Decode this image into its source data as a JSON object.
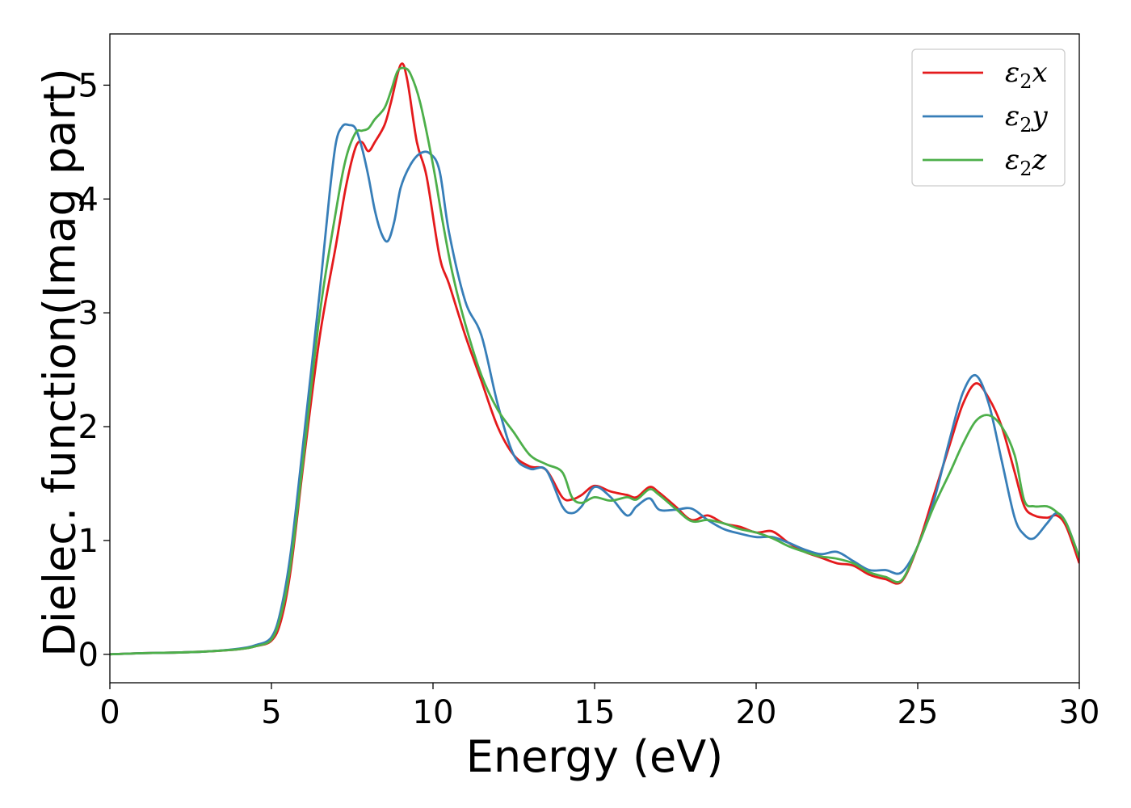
{
  "chart_data": {
    "type": "line",
    "title": "",
    "xlabel": "Energy (eV)",
    "ylabel": "Dielec. function(Imag part)",
    "xlim": [
      0,
      30
    ],
    "ylim": [
      -0.25,
      5.45
    ],
    "xticks": [
      0,
      5,
      10,
      15,
      20,
      25,
      30
    ],
    "yticks": [
      0,
      1,
      2,
      3,
      4,
      5
    ],
    "grid": false,
    "legend": "top-right",
    "series": [
      {
        "name": "ε2x",
        "label_main": "ε",
        "label_sub": "2",
        "label_tail": "x",
        "color": "#e41a1c",
        "x": [
          0,
          1,
          2,
          3,
          4,
          4.5,
          5,
          5.3,
          5.6,
          6,
          6.5,
          7,
          7.3,
          7.6,
          7.8,
          8.0,
          8.2,
          8.5,
          8.7,
          9.0,
          9.2,
          9.5,
          9.8,
          10.2,
          10.5,
          11,
          11.5,
          12,
          12.5,
          13,
          13.5,
          14,
          14.3,
          14.6,
          15,
          15.5,
          16,
          16.3,
          16.7,
          17,
          17.5,
          18,
          18.5,
          19,
          19.5,
          20,
          20.5,
          21,
          21.5,
          22,
          22.5,
          23,
          23.5,
          24,
          24.5,
          25,
          25.5,
          26,
          26.4,
          26.8,
          27.2,
          27.6,
          28,
          28.3,
          28.6,
          29,
          29.3,
          29.6,
          30
        ],
        "y": [
          0.0,
          0.01,
          0.015,
          0.025,
          0.045,
          0.07,
          0.12,
          0.3,
          0.75,
          1.7,
          2.8,
          3.6,
          4.1,
          4.45,
          4.5,
          4.42,
          4.5,
          4.65,
          4.85,
          5.18,
          5.05,
          4.5,
          4.2,
          3.5,
          3.25,
          2.8,
          2.4,
          2.0,
          1.75,
          1.65,
          1.62,
          1.38,
          1.36,
          1.4,
          1.48,
          1.43,
          1.4,
          1.38,
          1.47,
          1.42,
          1.3,
          1.18,
          1.22,
          1.15,
          1.12,
          1.07,
          1.08,
          0.98,
          0.9,
          0.85,
          0.8,
          0.78,
          0.7,
          0.66,
          0.64,
          0.95,
          1.4,
          1.85,
          2.2,
          2.38,
          2.25,
          2.0,
          1.6,
          1.3,
          1.22,
          1.2,
          1.22,
          1.12,
          0.8
        ]
      },
      {
        "name": "ε2y",
        "label_main": "ε",
        "label_sub": "2",
        "label_tail": "y",
        "color": "#377eb8",
        "x": [
          0,
          1,
          2,
          3,
          4,
          4.5,
          5,
          5.3,
          5.6,
          6,
          6.5,
          6.8,
          7.0,
          7.2,
          7.4,
          7.6,
          7.8,
          8.0,
          8.2,
          8.4,
          8.6,
          8.8,
          9.0,
          9.3,
          9.6,
          9.9,
          10.2,
          10.5,
          11,
          11.5,
          12,
          12.5,
          13,
          13.5,
          14,
          14.3,
          14.6,
          15,
          15.5,
          16,
          16.3,
          16.7,
          17,
          17.5,
          18,
          18.5,
          19,
          19.5,
          20,
          20.5,
          21,
          21.5,
          22,
          22.5,
          23,
          23.5,
          24,
          24.5,
          25,
          25.5,
          26,
          26.4,
          26.8,
          27.2,
          27.6,
          28,
          28.3,
          28.6,
          29,
          29.3,
          29.6,
          30
        ],
        "y": [
          0.0,
          0.01,
          0.015,
          0.025,
          0.05,
          0.08,
          0.15,
          0.4,
          0.9,
          1.9,
          3.2,
          4.05,
          4.5,
          4.64,
          4.65,
          4.62,
          4.45,
          4.2,
          3.9,
          3.7,
          3.63,
          3.8,
          4.1,
          4.3,
          4.4,
          4.4,
          4.25,
          3.7,
          3.1,
          2.8,
          2.2,
          1.75,
          1.63,
          1.62,
          1.3,
          1.24,
          1.3,
          1.47,
          1.38,
          1.22,
          1.3,
          1.37,
          1.27,
          1.27,
          1.28,
          1.18,
          1.1,
          1.06,
          1.03,
          1.03,
          0.98,
          0.92,
          0.88,
          0.9,
          0.82,
          0.74,
          0.74,
          0.72,
          0.95,
          1.35,
          1.9,
          2.3,
          2.45,
          2.2,
          1.7,
          1.2,
          1.05,
          1.02,
          1.15,
          1.24,
          1.15,
          0.85
        ]
      },
      {
        "name": "ε2z",
        "label_main": "ε",
        "label_sub": "2",
        "label_tail": "z",
        "color": "#4daf4a",
        "x": [
          0,
          1,
          2,
          3,
          4,
          4.5,
          5,
          5.3,
          5.6,
          6,
          6.5,
          7,
          7.3,
          7.6,
          7.8,
          8.0,
          8.2,
          8.5,
          8.7,
          8.9,
          9.1,
          9.3,
          9.6,
          10.0,
          10.3,
          10.6,
          11,
          11.5,
          12,
          12.5,
          13,
          13.5,
          14,
          14.3,
          14.6,
          15,
          15.5,
          16,
          16.3,
          16.7,
          17,
          17.5,
          18,
          18.5,
          19,
          19.5,
          20,
          20.5,
          21,
          21.5,
          22,
          22.5,
          23,
          23.5,
          24,
          24.5,
          25,
          25.5,
          26,
          26.4,
          26.8,
          27.2,
          27.6,
          28,
          28.3,
          28.6,
          29,
          29.3,
          29.6,
          30
        ],
        "y": [
          0.0,
          0.01,
          0.015,
          0.025,
          0.045,
          0.07,
          0.13,
          0.35,
          0.8,
          1.75,
          3.0,
          3.9,
          4.35,
          4.58,
          4.6,
          4.62,
          4.7,
          4.8,
          4.95,
          5.12,
          5.15,
          5.1,
          4.85,
          4.3,
          3.8,
          3.35,
          2.9,
          2.45,
          2.15,
          1.95,
          1.75,
          1.67,
          1.6,
          1.38,
          1.33,
          1.38,
          1.35,
          1.38,
          1.36,
          1.45,
          1.4,
          1.28,
          1.17,
          1.18,
          1.15,
          1.1,
          1.07,
          1.02,
          0.95,
          0.9,
          0.86,
          0.84,
          0.8,
          0.72,
          0.68,
          0.65,
          0.95,
          1.3,
          1.6,
          1.85,
          2.05,
          2.1,
          2.0,
          1.75,
          1.35,
          1.3,
          1.3,
          1.25,
          1.15,
          0.85
        ]
      }
    ]
  },
  "colors": {
    "background": "#ffffff",
    "axes": "#000000",
    "legend_border": "#cccccc"
  }
}
